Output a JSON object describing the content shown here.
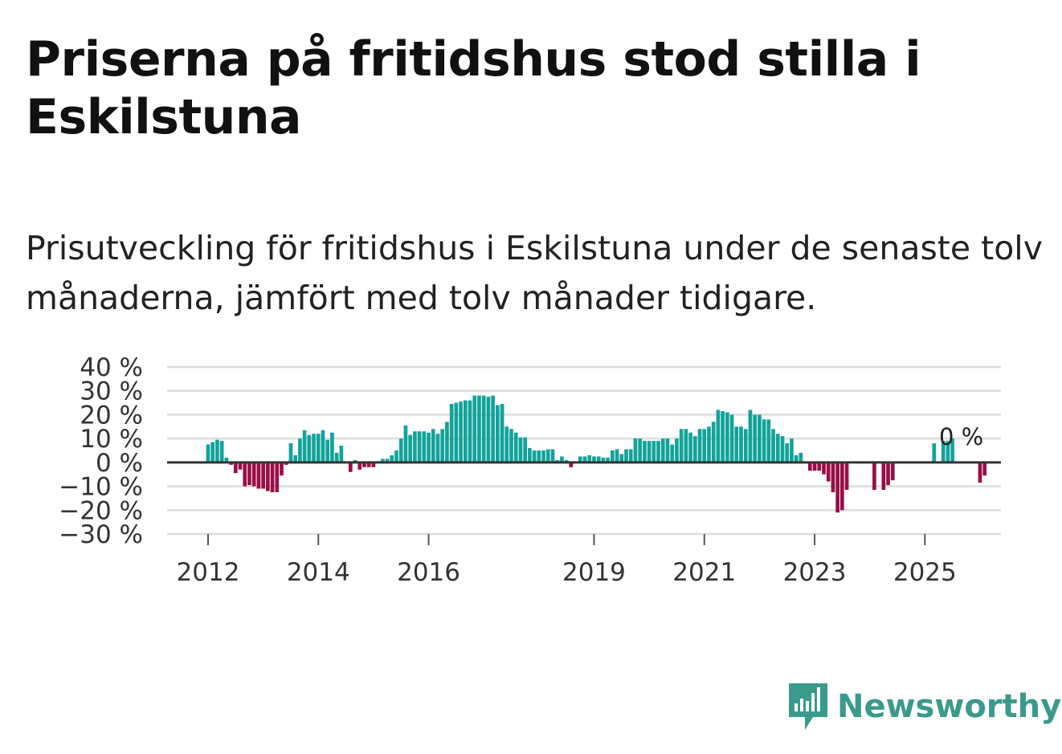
{
  "header": {
    "title": "Priserna på fritidshus stod stilla i Eskilstuna",
    "subtitle": "Prisutveckling för fritidshus i Eskilstuna under de senaste tolv månaderna, jämfört med tolv månader tidigare."
  },
  "chart_data": {
    "type": "bar",
    "title": "Priserna på fritidshus stod stilla i Eskilstuna",
    "subtitle": "Prisutveckling för fritidshus i Eskilstuna under de senaste tolv månaderna, jämfört med tolv månader tidigare.",
    "xlabel": "",
    "ylabel": "",
    "unit": "%",
    "start": "2012-01",
    "frequency": "monthly",
    "ylim": [
      -30,
      40
    ],
    "yticks": [
      40,
      30,
      20,
      10,
      0,
      -10,
      -20,
      -30
    ],
    "ytick_labels": [
      "40 %",
      "30 %",
      "20 %",
      "10 %",
      "0 %",
      "−10 %",
      "−20 %",
      "−30 %"
    ],
    "xtick_labels": [
      "2012",
      "2014",
      "2016",
      "2019",
      "2021",
      "2023",
      "2025"
    ],
    "positive_color": "#12a39a",
    "negative_color": "#990f47",
    "end_label": "0 %",
    "values": [
      7.5,
      8.5,
      9.5,
      9.0,
      2.0,
      -1.0,
      -4.5,
      -3.0,
      -10.0,
      -9.5,
      -10.0,
      -11.0,
      -11.0,
      -12.0,
      -12.5,
      -12.5,
      -5.5,
      -1.0,
      8.0,
      3.0,
      10.0,
      13.5,
      11.5,
      12.0,
      12.0,
      13.5,
      9.5,
      12.5,
      4.0,
      7.0,
      0,
      -4.0,
      1.0,
      -3.0,
      -2.0,
      -2.0,
      -2.0,
      0.5,
      1.5,
      1.5,
      3.0,
      5.0,
      10.0,
      15.5,
      11.5,
      13.0,
      13.0,
      13.0,
      12.5,
      14.0,
      12.0,
      14.0,
      17.0,
      24.5,
      25.0,
      25.5,
      26.0,
      26.0,
      28.0,
      28.0,
      28.0,
      27.5,
      28.0,
      24.0,
      24.5,
      15.0,
      14.0,
      12.5,
      10.5,
      10.5,
      6.0,
      5.0,
      5.0,
      5.0,
      5.5,
      5.5,
      1.0,
      2.5,
      1.0,
      -2.0,
      0,
      2.5,
      2.5,
      3.0,
      2.5,
      2.5,
      2.0,
      2.0,
      5.0,
      5.5,
      3.5,
      5.5,
      5.5,
      10.0,
      10.0,
      9.0,
      9.0,
      9.0,
      9.0,
      10.0,
      10.0,
      7.5,
      10.0,
      14.0,
      14.0,
      12.5,
      11.0,
      14.0,
      14.0,
      15.0,
      17.0,
      22.0,
      21.5,
      21.0,
      20.0,
      15.0,
      15.0,
      14.0,
      22.0,
      20.0,
      20.0,
      18.0,
      18.0,
      14.0,
      12.0,
      11.0,
      8.0,
      10.0,
      3.0,
      4.0,
      0,
      -3.5,
      -3.5,
      -3.5,
      -5.0,
      -8.0,
      -12.5,
      -21.0,
      -20.0,
      -11.5,
      0,
      0,
      0,
      0,
      0,
      -11.5,
      0,
      -11.5,
      -9.5,
      -7.5,
      0,
      0,
      0,
      0,
      0,
      0,
      0,
      0,
      8.0,
      0,
      9.0,
      9.0,
      10.0,
      0,
      0,
      0,
      0,
      0,
      -8.5,
      -5.5,
      0,
      0
    ]
  },
  "footer": {
    "logo_text": "Newsworthy",
    "logo_color": "#3a9a8c",
    "logo_icon": "bar-chart-icon"
  }
}
